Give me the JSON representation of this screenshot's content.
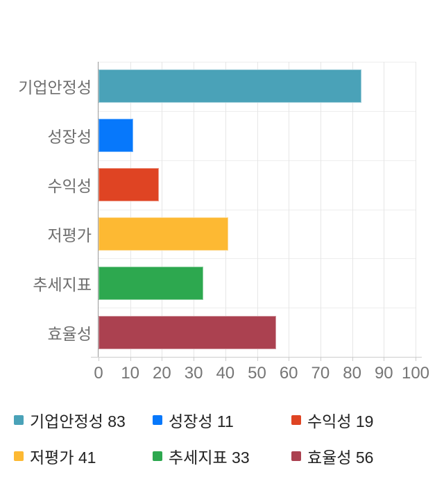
{
  "chart_data": {
    "type": "bar",
    "orientation": "horizontal",
    "title": "",
    "xlabel": "",
    "ylabel": "",
    "categories": [
      "기업안정성",
      "성장성",
      "수익성",
      "저평가",
      "추세지표",
      "효율성"
    ],
    "values": [
      83,
      11,
      19,
      41,
      33,
      56
    ],
    "colors": [
      "#4aa2b8",
      "#0778fb",
      "#df4423",
      "#fdb933",
      "#2da84f",
      "#ab4150"
    ],
    "xlim": [
      0,
      100
    ],
    "x_ticks": [
      0,
      10,
      20,
      30,
      40,
      50,
      60,
      70,
      80,
      90,
      100
    ],
    "grid": true,
    "legend_position": "bottom",
    "legend": [
      {
        "label": "기업안정성",
        "value": 83,
        "color": "#4aa2b8"
      },
      {
        "label": "성장성",
        "value": 11,
        "color": "#0778fb"
      },
      {
        "label": "수익성",
        "value": 19,
        "color": "#df4423"
      },
      {
        "label": "저평가",
        "value": 41,
        "color": "#fdb933"
      },
      {
        "label": "추세지표",
        "value": 33,
        "color": "#2da84f"
      },
      {
        "label": "효율성",
        "value": 56,
        "color": "#ab4150"
      }
    ]
  },
  "style": {
    "background": "#ffffff",
    "grid_color_vertical": "#e6e6e6",
    "grid_color_horizontal": "#ededed",
    "category_axis_line_color": "#9a9a9a",
    "value_axis_line_color": "#cccccc",
    "tick_label_color": "#757575",
    "category_label_color": "#6e6e6e",
    "legend_text_color": "#222222"
  }
}
